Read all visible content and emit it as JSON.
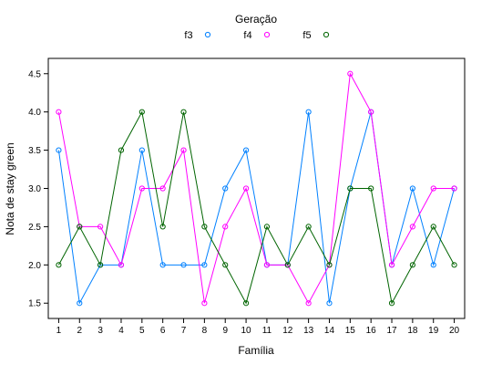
{
  "chart_data": {
    "type": "line",
    "title": "",
    "xlabel": "Família",
    "ylabel": "Nota de stay green",
    "legend_title": "Geração",
    "legend_position": "top",
    "x": [
      1,
      2,
      3,
      4,
      5,
      6,
      7,
      8,
      9,
      10,
      11,
      12,
      13,
      14,
      15,
      16,
      17,
      18,
      19,
      20
    ],
    "x_ticks": [
      "1",
      "2",
      "3",
      "4",
      "5",
      "6",
      "7",
      "8",
      "9",
      "10",
      "11",
      "12",
      "13",
      "14",
      "15",
      "16",
      "17",
      "18",
      "19",
      "20"
    ],
    "y_ticks": [
      "1.5",
      "2.0",
      "2.5",
      "3.0",
      "3.5",
      "4.0",
      "4.5"
    ],
    "xlim": [
      0.5,
      20.5
    ],
    "ylim": [
      1.3,
      4.7
    ],
    "grid": false,
    "series": [
      {
        "name": "f3",
        "color": "#0080ff",
        "marker": "circle-open",
        "values": [
          3.5,
          1.5,
          2.0,
          2.0,
          3.5,
          2.0,
          2.0,
          2.0,
          3.0,
          3.5,
          2.0,
          2.0,
          4.0,
          1.5,
          3.0,
          4.0,
          2.0,
          3.0,
          2.0,
          3.0
        ]
      },
      {
        "name": "f4",
        "color": "#ff00ff",
        "marker": "circle-open",
        "values": [
          4.0,
          2.5,
          2.5,
          2.0,
          3.0,
          3.0,
          3.5,
          1.5,
          2.5,
          3.0,
          2.0,
          2.0,
          1.5,
          2.0,
          4.5,
          4.0,
          2.0,
          2.5,
          3.0,
          3.0
        ]
      },
      {
        "name": "f5",
        "color": "#006400",
        "marker": "circle-open",
        "values": [
          2.0,
          2.5,
          2.0,
          3.5,
          4.0,
          2.5,
          4.0,
          2.5,
          2.0,
          1.5,
          2.5,
          2.0,
          2.5,
          2.0,
          3.0,
          3.0,
          1.5,
          2.0,
          2.5,
          2.0
        ]
      }
    ]
  }
}
